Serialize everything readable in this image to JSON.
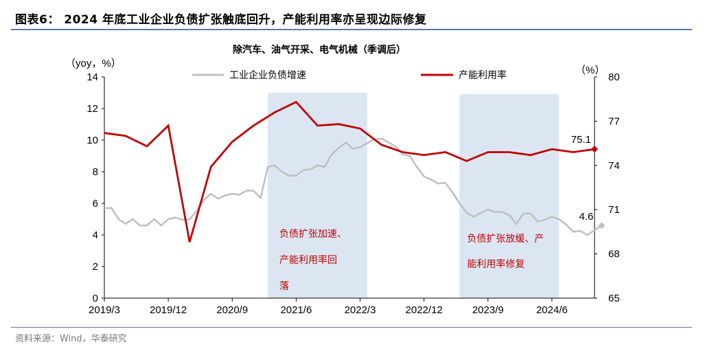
{
  "header": {
    "title": "图表6：  2024 年底工业企业负债扩张触底回升，产能利用率亦呈现边际修复"
  },
  "footer": {
    "source": "资料来源：Wind，华泰研究"
  },
  "chart_data": {
    "type": "line",
    "title": "除汽车、油气开采、电气机械（季调后）",
    "left_axis": {
      "label": "（yoy，%）",
      "range": [
        0,
        14
      ],
      "ticks": [
        0,
        2,
        4,
        6,
        8,
        10,
        12,
        14
      ]
    },
    "right_axis": {
      "label": "（%）",
      "range": [
        65,
        80
      ],
      "ticks": [
        65,
        68,
        71,
        74,
        77,
        80
      ]
    },
    "x_ticks": [
      "2019/3",
      "2019/12",
      "2020/9",
      "2021/6",
      "2022/3",
      "2022/12",
      "2023/9",
      "2024/6"
    ],
    "legend_placement": "top",
    "colors": {
      "debt": "#bfbfbf",
      "capacity": "#c00000",
      "shade": "#dce6f2"
    },
    "series": [
      {
        "name": "工业企业负债增速",
        "axis": "left",
        "frequency": "monthly",
        "start": "2019/3",
        "end": "2024/12",
        "values": [
          5.7,
          5.7,
          5.0,
          4.7,
          5.0,
          4.6,
          4.6,
          5.0,
          4.6,
          5.0,
          5.1,
          4.95,
          5.0,
          5.5,
          6.2,
          6.6,
          6.3,
          6.5,
          6.6,
          6.55,
          6.8,
          6.8,
          6.35,
          8.3,
          8.4,
          8.0,
          7.75,
          7.75,
          8.1,
          8.15,
          8.4,
          8.3,
          9.1,
          9.5,
          9.85,
          9.45,
          9.55,
          9.8,
          10.05,
          10.1,
          9.85,
          9.6,
          9.1,
          9.0,
          8.3,
          7.7,
          7.5,
          7.25,
          7.3,
          6.7,
          6.0,
          5.4,
          5.15,
          5.4,
          5.6,
          5.45,
          5.45,
          5.25,
          4.7,
          5.35,
          5.35,
          4.85,
          4.95,
          5.15,
          5.0,
          4.65,
          4.2,
          4.25,
          4.0,
          4.3,
          4.6
        ],
        "last_label": "4.6"
      },
      {
        "name": "产能利用率",
        "axis": "right",
        "frequency": "quarterly",
        "start": "2019/3",
        "end": "2024/12",
        "values": [
          76.2,
          76.0,
          75.3,
          76.7,
          68.8,
          73.9,
          75.6,
          76.7,
          77.6,
          78.3,
          76.7,
          76.8,
          76.5,
          75.4,
          74.9,
          74.7,
          74.9,
          74.3,
          74.9,
          74.9,
          74.7,
          75.1,
          74.9,
          75.1
        ],
        "last_label": "75.1"
      }
    ],
    "shaded_periods": [
      {
        "start": "2021/2",
        "end": "2022/4",
        "annotation": [
          "负债扩张加速、",
          "产能利用率回",
          "落"
        ]
      },
      {
        "start": "2023/5",
        "end": "2024/7",
        "annotation": [
          "负债扩张放缓、产",
          "能利用率修复"
        ]
      }
    ]
  }
}
